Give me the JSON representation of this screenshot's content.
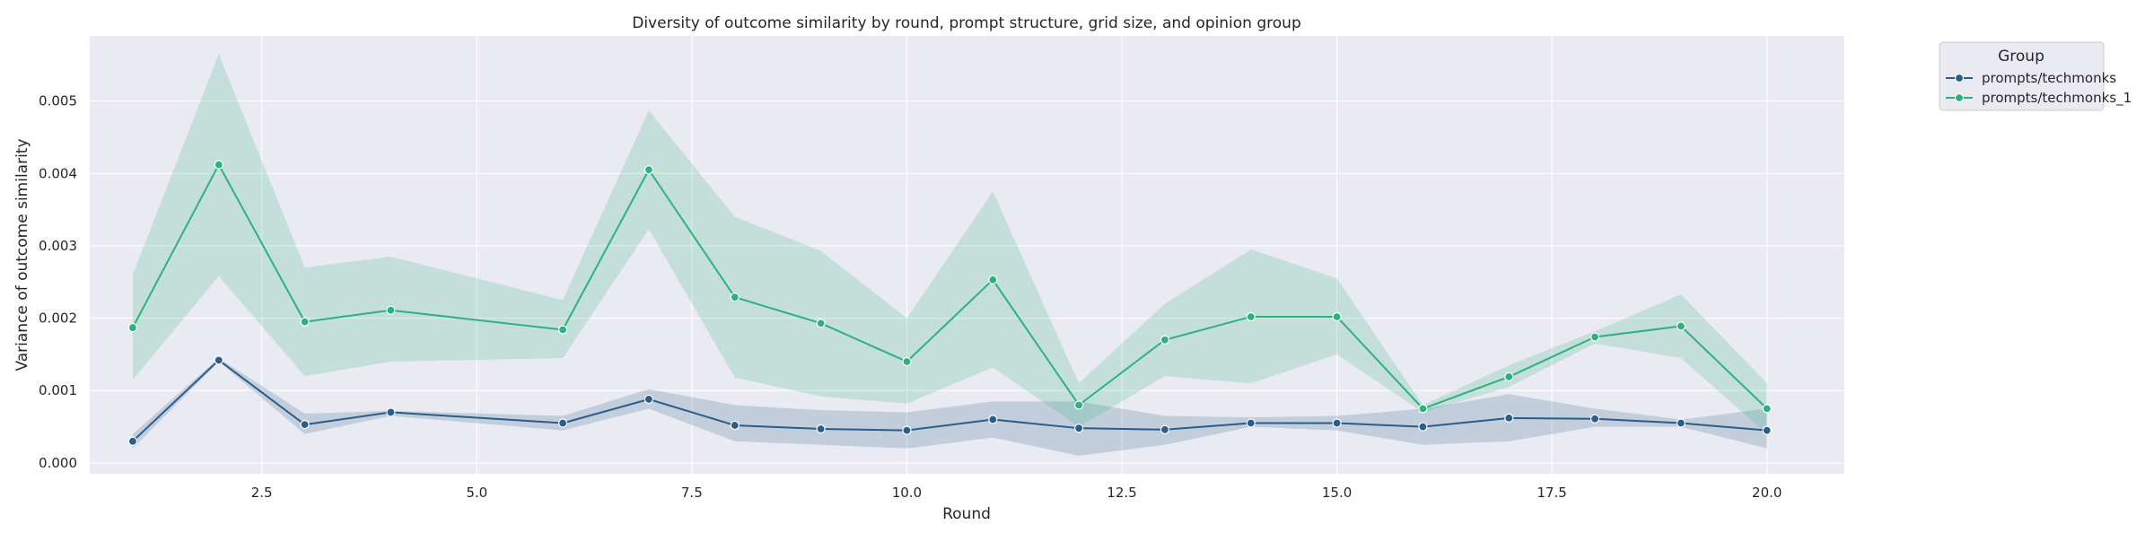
{
  "chart_data": {
    "type": "line",
    "title": "Diversity of outcome similarity by round, prompt structure, grid size, and opinion group",
    "xlabel": "Round",
    "ylabel": "Variance of outcome similarity",
    "xlim": [
      0.5,
      20.9
    ],
    "ylim": [
      -0.00015,
      0.0059
    ],
    "x_ticks": [
      2.5,
      5.0,
      7.5,
      10.0,
      12.5,
      15.0,
      17.5,
      20.0
    ],
    "x_tick_labels": [
      "2.5",
      "5.0",
      "7.5",
      "10.0",
      "12.5",
      "15.0",
      "17.5",
      "20.0"
    ],
    "y_ticks": [
      0.0,
      0.001,
      0.002,
      0.003,
      0.004,
      0.005
    ],
    "y_tick_labels": [
      "0.000",
      "0.001",
      "0.002",
      "0.003",
      "0.004",
      "0.005"
    ],
    "grid": true,
    "legend": {
      "title": "Group",
      "placement": "outside-top-right"
    },
    "series": [
      {
        "name": "prompts/techmonks",
        "color": "#2a5d8a",
        "band_color": "#2a5d8a",
        "x": [
          1,
          2,
          3,
          4,
          6,
          7,
          8,
          9,
          10,
          11,
          12,
          13,
          14,
          15,
          16,
          17,
          18,
          19,
          20
        ],
        "y": [
          0.0003,
          0.00142,
          0.00053,
          0.0007,
          0.00055,
          0.00088,
          0.00052,
          0.00047,
          0.00045,
          0.0006,
          0.00048,
          0.00046,
          0.00055,
          0.00055,
          0.0005,
          0.00062,
          0.00061,
          0.00055,
          0.00045
        ],
        "ci_low": [
          0.0002,
          0.0014,
          0.0004,
          0.00065,
          0.00045,
          0.00075,
          0.0003,
          0.00025,
          0.0002,
          0.00035,
          0.0001,
          0.00025,
          0.0005,
          0.00045,
          0.00025,
          0.0003,
          0.0005,
          0.0005,
          0.0002
        ],
        "ci_high": [
          0.0004,
          0.00145,
          0.00068,
          0.00072,
          0.00065,
          0.00102,
          0.0008,
          0.00073,
          0.0007,
          0.00085,
          0.00085,
          0.00065,
          0.00063,
          0.00065,
          0.00075,
          0.00095,
          0.00075,
          0.0006,
          0.00075
        ]
      },
      {
        "name": "prompts/techmonks_1",
        "color": "#2db27d",
        "band_color": "#2db27d",
        "x": [
          1,
          2,
          3,
          4,
          6,
          7,
          8,
          9,
          10,
          11,
          12,
          13,
          14,
          15,
          16,
          17,
          18,
          19,
          20
        ],
        "y": [
          0.00187,
          0.00412,
          0.00195,
          0.00211,
          0.00184,
          0.00405,
          0.00229,
          0.00193,
          0.0014,
          0.00253,
          0.0008,
          0.0017,
          0.00202,
          0.00202,
          0.00075,
          0.00119,
          0.00174,
          0.00189,
          0.00075
        ],
        "ci_low": [
          0.00115,
          0.00258,
          0.0012,
          0.0014,
          0.00145,
          0.00323,
          0.00118,
          0.00092,
          0.00082,
          0.00132,
          0.0005,
          0.0012,
          0.0011,
          0.0015,
          0.0007,
          0.00105,
          0.00165,
          0.00145,
          0.0004
        ],
        "ci_high": [
          0.0026,
          0.00565,
          0.0027,
          0.00285,
          0.00225,
          0.00487,
          0.0034,
          0.00293,
          0.002,
          0.00375,
          0.0011,
          0.0022,
          0.00295,
          0.00255,
          0.0008,
          0.00135,
          0.00182,
          0.00233,
          0.0011
        ]
      }
    ]
  }
}
